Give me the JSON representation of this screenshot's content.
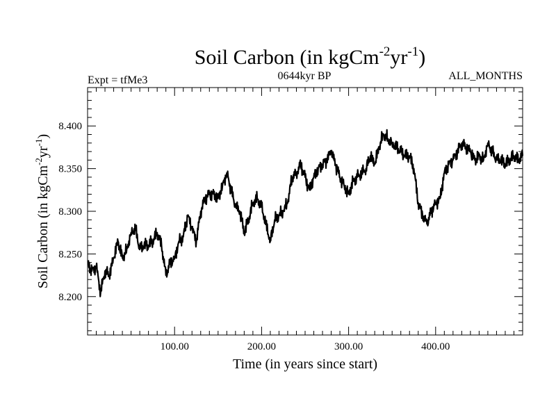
{
  "chart_data": {
    "type": "line",
    "title": "Soil Carbon (in kgCm",
    "title_sup1": "-2",
    "title_mid": "yr",
    "title_sup2": "-1",
    "title_end": ")",
    "subtitle_left": "Expt = tfMe3",
    "subtitle_center": "0644kyr BP",
    "subtitle_right": "ALL_MONTHS",
    "xlabel": "Time (in years since start)",
    "ylabel": "Soil Carbon (in kgCm",
    "ylabel_sup1": "-2",
    "ylabel_mid": "yr",
    "ylabel_sup2": "-1",
    "ylabel_end": ")",
    "xlim": [
      0,
      500
    ],
    "ylim": [
      8.155,
      8.445
    ],
    "x_ticks": [
      100,
      200,
      300,
      400
    ],
    "x_tick_labels": [
      "100.00",
      "200.00",
      "300.00",
      "400.00"
    ],
    "y_ticks": [
      8.2,
      8.25,
      8.3,
      8.35,
      8.4
    ],
    "y_tick_labels": [
      "8.200",
      "8.250",
      "8.300",
      "8.350",
      "8.400"
    ],
    "grid": false,
    "line_color": "#000000",
    "series": [
      {
        "x": [
          0,
          5,
          10,
          15,
          20,
          25,
          30,
          35,
          40,
          45,
          50,
          55,
          60,
          65,
          70,
          75,
          80,
          85,
          90,
          95,
          100,
          105,
          110,
          115,
          120,
          125,
          130,
          135,
          140,
          145,
          150,
          155,
          160,
          165,
          170,
          175,
          180,
          185,
          190,
          195,
          200,
          205,
          210,
          215,
          220,
          225,
          230,
          235,
          240,
          245,
          250,
          255,
          260,
          265,
          270,
          275,
          280,
          285,
          290,
          295,
          300,
          305,
          310,
          315,
          320,
          325,
          330,
          335,
          340,
          345,
          350,
          355,
          360,
          365,
          370,
          375,
          380,
          385,
          390,
          395,
          400,
          405,
          410,
          415,
          420,
          425,
          430,
          435,
          440,
          445,
          450,
          455,
          460,
          465,
          470,
          475,
          480,
          485,
          490,
          495,
          500
        ],
        "values": [
          8.24,
          8.23,
          8.235,
          8.205,
          8.23,
          8.225,
          8.245,
          8.265,
          8.245,
          8.255,
          8.275,
          8.28,
          8.255,
          8.26,
          8.26,
          8.265,
          8.275,
          8.26,
          8.225,
          8.24,
          8.245,
          8.265,
          8.27,
          8.295,
          8.28,
          8.265,
          8.3,
          8.315,
          8.32,
          8.32,
          8.315,
          8.33,
          8.345,
          8.325,
          8.305,
          8.3,
          8.275,
          8.29,
          8.31,
          8.315,
          8.305,
          8.285,
          8.265,
          8.29,
          8.295,
          8.3,
          8.31,
          8.34,
          8.345,
          8.355,
          8.34,
          8.325,
          8.34,
          8.35,
          8.355,
          8.36,
          8.37,
          8.355,
          8.34,
          8.33,
          8.32,
          8.335,
          8.34,
          8.345,
          8.35,
          8.365,
          8.355,
          8.375,
          8.39,
          8.385,
          8.38,
          8.375,
          8.37,
          8.365,
          8.365,
          8.35,
          8.31,
          8.295,
          8.285,
          8.3,
          8.31,
          8.315,
          8.345,
          8.355,
          8.36,
          8.37,
          8.38,
          8.375,
          8.37,
          8.36,
          8.365,
          8.36,
          8.38,
          8.37,
          8.36,
          8.36,
          8.355,
          8.36,
          8.365,
          8.36,
          8.365
        ]
      }
    ]
  }
}
